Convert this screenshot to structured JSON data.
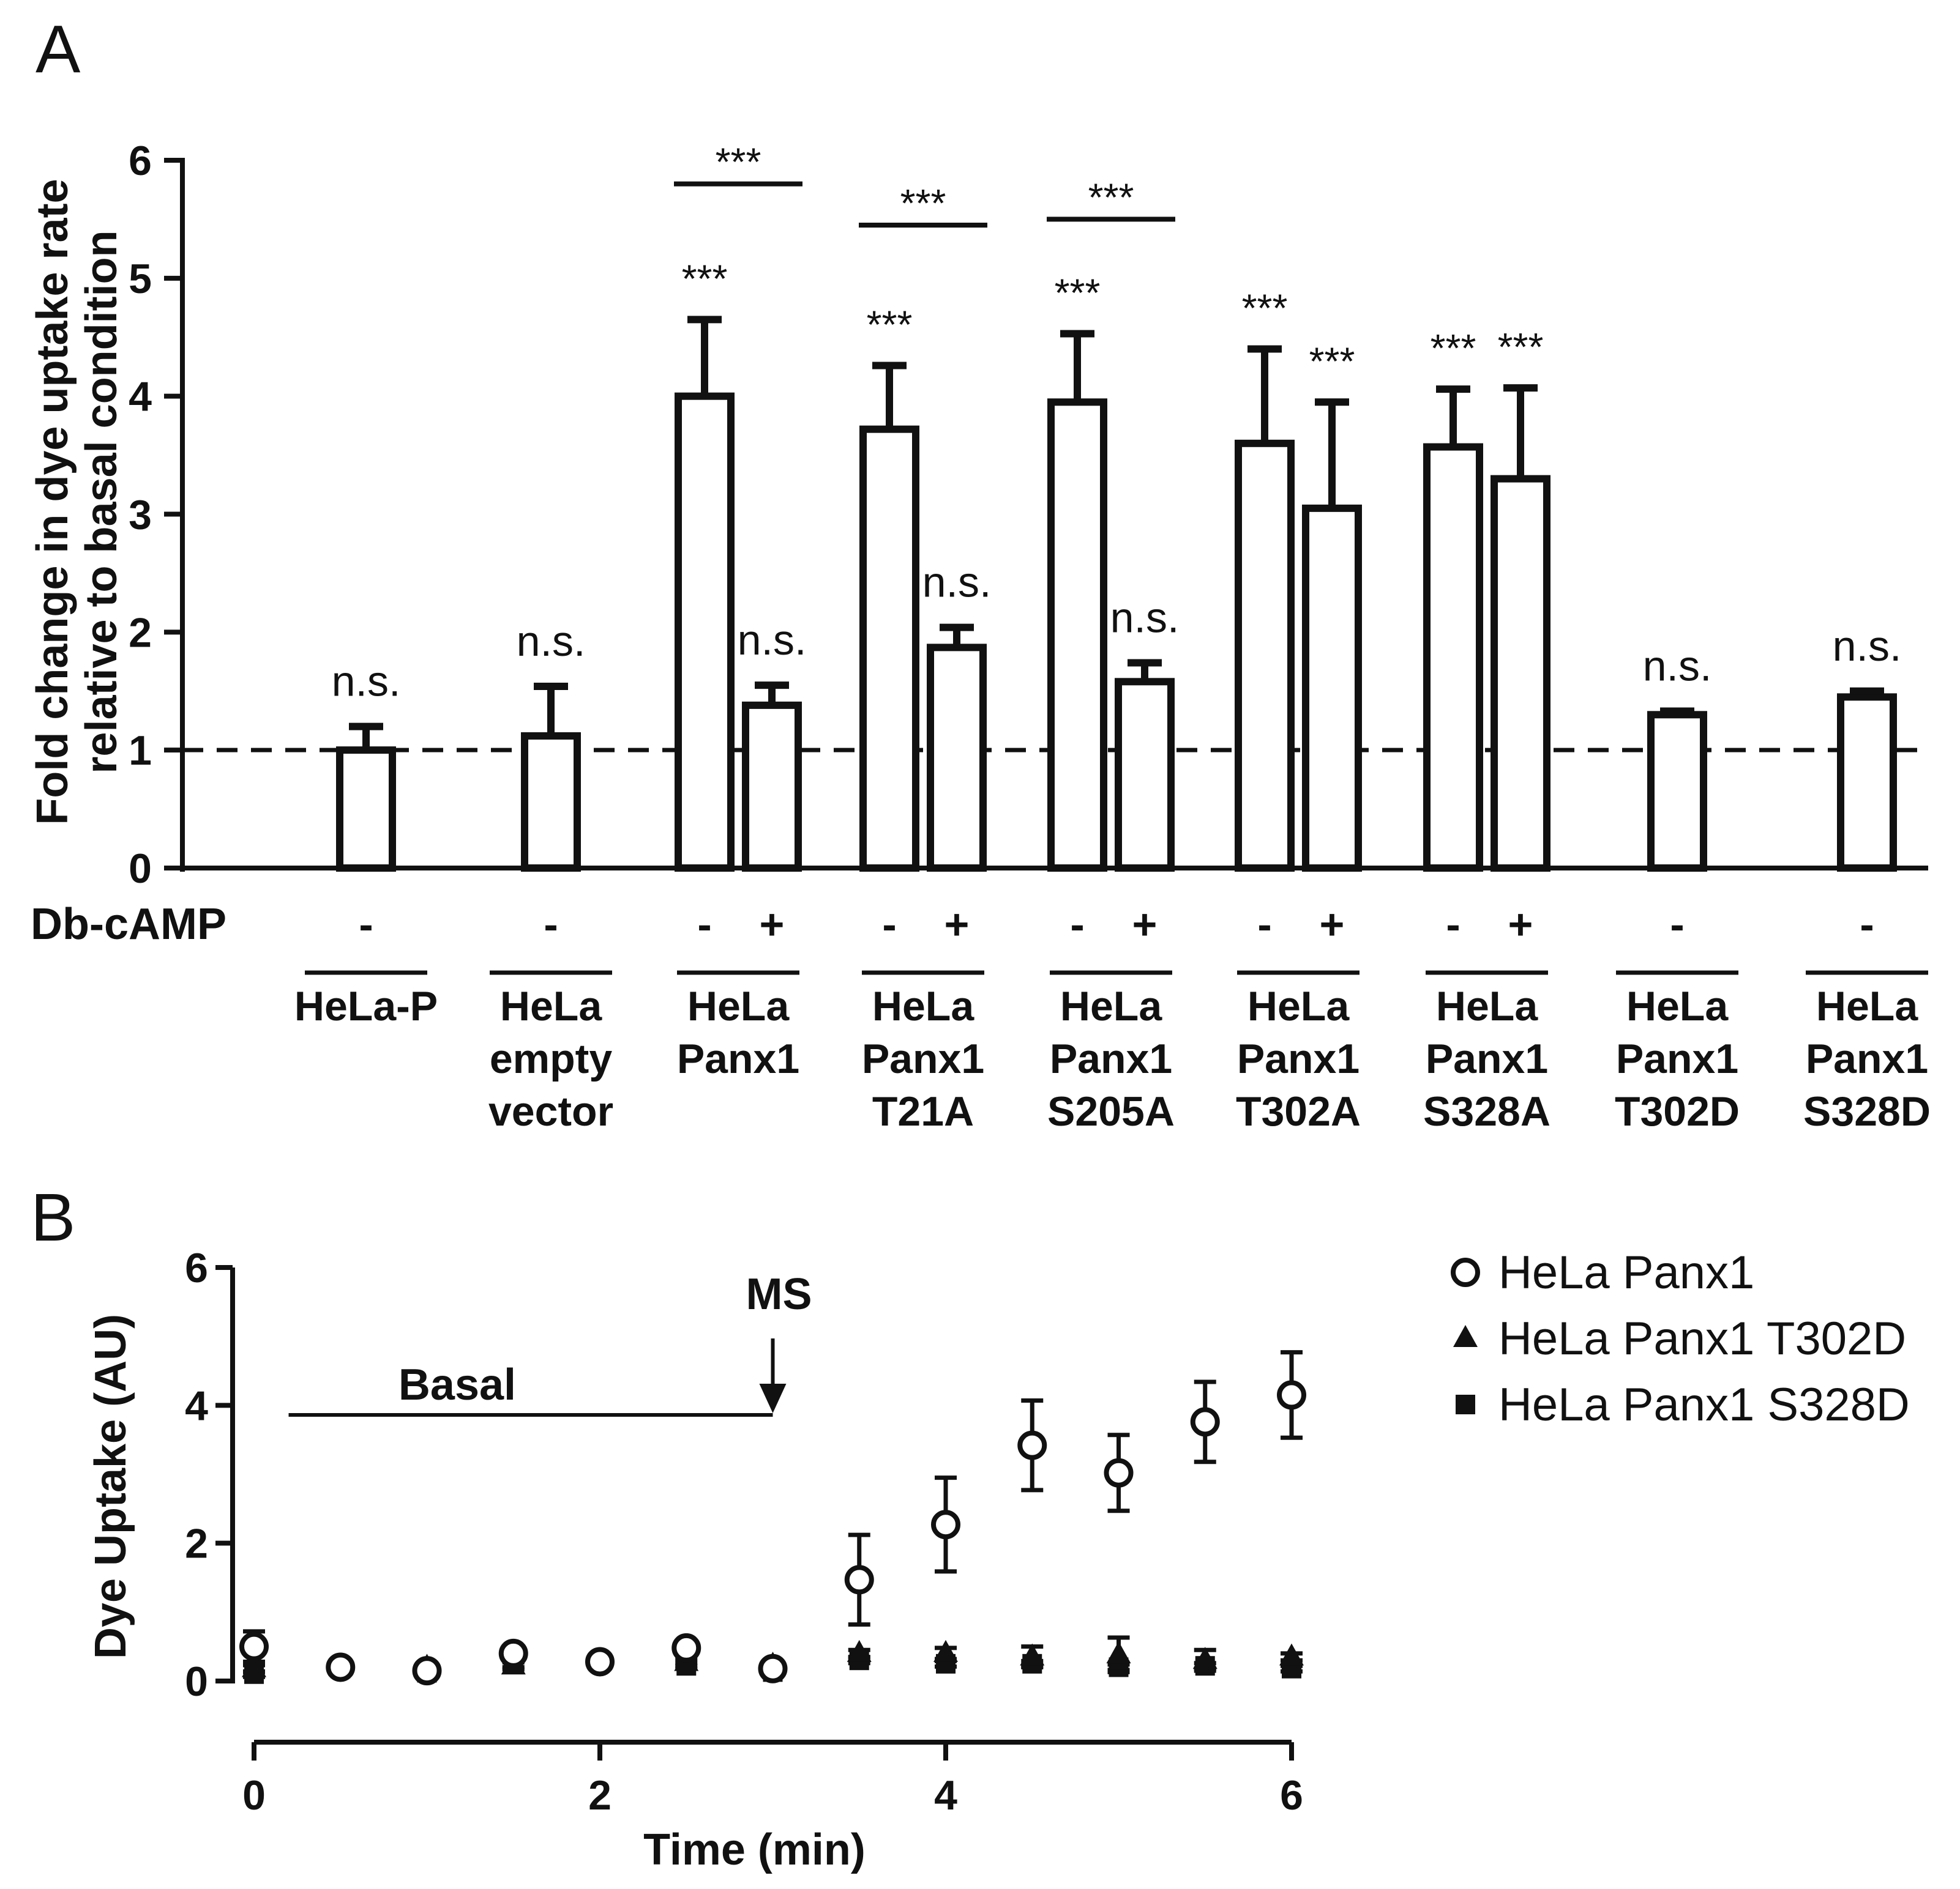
{
  "panel_labels": [
    "A",
    "B"
  ],
  "chart_data": [
    {
      "type": "bar",
      "panel": "A",
      "ylabel_lines": [
        "Fold change in dye uptake rate",
        "relative to basal condition"
      ],
      "ylim": [
        0,
        6
      ],
      "yticks": [
        0,
        1,
        2,
        3,
        4,
        5,
        6
      ],
      "reference_line": 1,
      "treatment_label": "Db-cAMP",
      "groups": [
        {
          "lines": [
            "HeLa-P"
          ]
        },
        {
          "lines": [
            "HeLa",
            "empty",
            "vector"
          ]
        },
        {
          "lines": [
            "HeLa",
            "Panx1"
          ]
        },
        {
          "lines": [
            "HeLa",
            "Panx1",
            "T21A"
          ]
        },
        {
          "lines": [
            "HeLa",
            "Panx1",
            "S205A"
          ]
        },
        {
          "lines": [
            "HeLa",
            "Panx1",
            "T302A"
          ]
        },
        {
          "lines": [
            "HeLa",
            "Panx1",
            "S328A"
          ]
        },
        {
          "lines": [
            "HeLa",
            "Panx1",
            "T302D"
          ]
        },
        {
          "lines": [
            "HeLa",
            "Panx1",
            "S328D"
          ]
        }
      ],
      "bars": [
        {
          "group": 0,
          "treatment": "-",
          "value": 1.0,
          "error": 0.2,
          "label": "n.s."
        },
        {
          "group": 1,
          "treatment": "-",
          "value": 1.12,
          "error": 0.42,
          "label": "n.s."
        },
        {
          "group": 2,
          "treatment": "-",
          "value": 4.0,
          "error": 0.65,
          "label": "***"
        },
        {
          "group": 2,
          "treatment": "+",
          "value": 1.38,
          "error": 0.17,
          "label": "n.s."
        },
        {
          "group": 3,
          "treatment": "-",
          "value": 3.72,
          "error": 0.54,
          "label": "***"
        },
        {
          "group": 3,
          "treatment": "+",
          "value": 1.87,
          "error": 0.17,
          "label": "n.s."
        },
        {
          "group": 4,
          "treatment": "-",
          "value": 3.95,
          "error": 0.58,
          "label": "***"
        },
        {
          "group": 4,
          "treatment": "+",
          "value": 1.58,
          "error": 0.16,
          "label": "n.s."
        },
        {
          "group": 5,
          "treatment": "-",
          "value": 3.6,
          "error": 0.8,
          "label": "***"
        },
        {
          "group": 5,
          "treatment": "+",
          "value": 3.05,
          "error": 0.9,
          "label": "***"
        },
        {
          "group": 6,
          "treatment": "-",
          "value": 3.57,
          "error": 0.49,
          "label": "***"
        },
        {
          "group": 6,
          "treatment": "+",
          "value": 3.3,
          "error": 0.77,
          "label": "***"
        },
        {
          "group": 7,
          "treatment": "-",
          "value": 1.3,
          "error": 0.03,
          "label": "n.s."
        },
        {
          "group": 8,
          "treatment": "-",
          "value": 1.45,
          "error": 0.05,
          "label": "n.s."
        }
      ],
      "brackets": [
        {
          "group": 2,
          "label": "***",
          "level": 5.8
        },
        {
          "group": 3,
          "label": "***",
          "level": 5.45
        },
        {
          "group": 4,
          "label": "***",
          "level": 5.5
        }
      ]
    },
    {
      "type": "scatter",
      "panel": "B",
      "xlabel": "Time (min)",
      "ylabel": "Dye Uptake (AU)",
      "xlim": [
        0,
        6
      ],
      "ylim": [
        0,
        6
      ],
      "xticks": [
        0,
        2,
        4,
        6
      ],
      "yticks": [
        0,
        2,
        4,
        6
      ],
      "annotation": {
        "bar_label": "Basal",
        "bar_from": 0.2,
        "bar_to": 3.0,
        "arrow_label": "MS",
        "arrow_at": 3.0
      },
      "series": [
        {
          "name": "HeLa Panx1",
          "marker": "open-circle",
          "x": [
            0,
            0.5,
            1,
            1.5,
            2,
            2.5,
            3,
            3.5,
            4,
            4.5,
            5,
            5.5,
            6
          ],
          "y": [
            0.5,
            0.2,
            0.15,
            0.4,
            0.28,
            0.48,
            0.18,
            1.47,
            2.27,
            3.42,
            3.02,
            3.76,
            4.15
          ],
          "error": [
            0.22,
            0.05,
            0.05,
            0.05,
            0.05,
            0.05,
            0.05,
            0.65,
            0.68,
            0.65,
            0.55,
            0.58,
            0.62
          ]
        },
        {
          "name": "HeLa Panx1 T302D",
          "marker": "filled-triangle",
          "x": [
            0,
            0.5,
            1,
            1.5,
            2,
            2.5,
            3,
            3.5,
            4,
            4.5,
            5,
            5.5,
            6
          ],
          "y": [
            0.18,
            0.2,
            0.2,
            0.22,
            0.3,
            0.27,
            0.23,
            0.4,
            0.4,
            0.35,
            0.38,
            0.3,
            0.35
          ],
          "error": [
            0.05,
            0.04,
            0.05,
            0.05,
            0.05,
            0.05,
            0.05,
            0.05,
            0.08,
            0.15,
            0.25,
            0.15,
            0.05
          ]
        },
        {
          "name": "HeLa Panx1 S328D",
          "marker": "filled-square",
          "x": [
            0,
            0.5,
            1,
            1.5,
            2,
            2.5,
            3,
            3.5,
            4,
            4.5,
            5,
            5.5,
            6
          ],
          "y": [
            0.1,
            0.18,
            0.12,
            0.25,
            0.28,
            0.22,
            0.13,
            0.3,
            0.25,
            0.25,
            0.2,
            0.22,
            0.18
          ],
          "error": [
            0.04,
            0.04,
            0.05,
            0.05,
            0.04,
            0.04,
            0.04,
            0.04,
            0.04,
            0.04,
            0.04,
            0.04,
            0.04
          ]
        }
      ]
    }
  ]
}
